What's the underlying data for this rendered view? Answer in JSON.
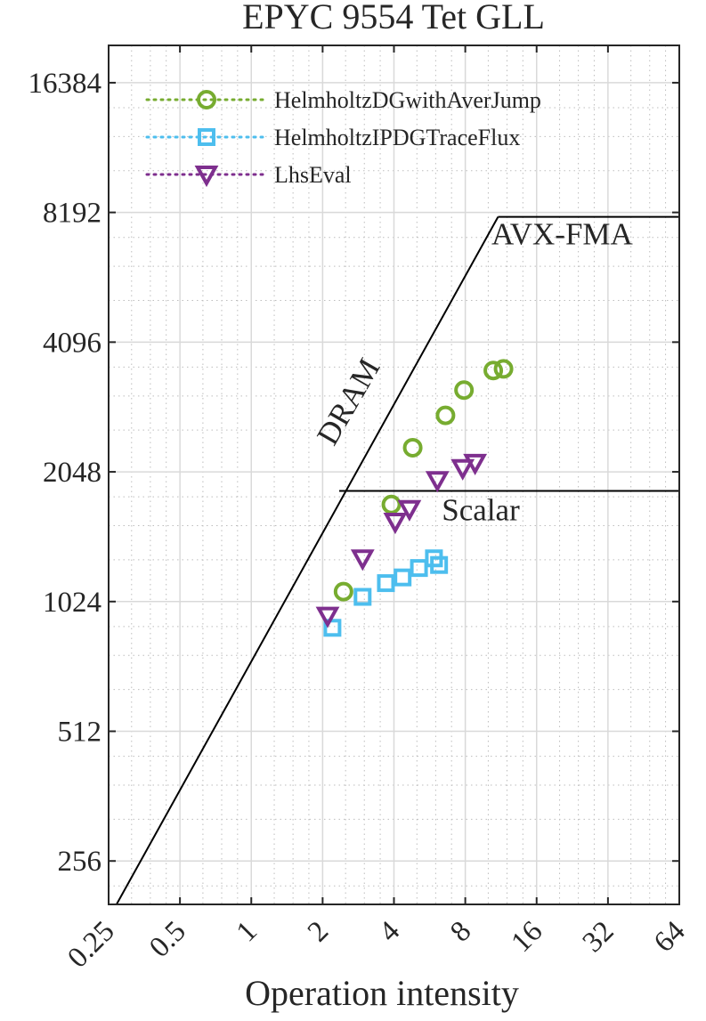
{
  "chart_data": {
    "type": "scatter",
    "title": "EPYC 9554 Tet GLL",
    "xlabel": "Operation intensity",
    "ylabel": "",
    "x_scale": "log2",
    "y_scale": "log2",
    "xlim": [
      0.25,
      64
    ],
    "ylim": [
      203,
      20000
    ],
    "x_ticks": [
      0.25,
      0.5,
      1,
      2,
      4,
      8,
      16,
      32,
      64
    ],
    "x_tick_labels": [
      "0.25",
      "0.5",
      "1",
      "2",
      "4",
      "8",
      "16",
      "32",
      "64"
    ],
    "y_ticks": [
      256,
      512,
      1024,
      2048,
      4096,
      8192,
      16384
    ],
    "y_tick_labels": [
      "256",
      "512",
      "1024",
      "2048",
      "4096",
      "8192",
      "16384"
    ],
    "grid": true,
    "legend_position": "top-left",
    "series": [
      {
        "name": "HelmholtzDGwithAverJump",
        "color": "#77ac30",
        "marker": "circle",
        "points": [
          [
            2.45,
            1080
          ],
          [
            3.9,
            1720
          ],
          [
            4.8,
            2330
          ],
          [
            6.6,
            2770
          ],
          [
            7.9,
            3170
          ],
          [
            10.5,
            3520
          ],
          [
            11.6,
            3550
          ]
        ]
      },
      {
        "name": "HelmholtzIPDGTraceFlux",
        "color": "#4dbeee",
        "marker": "square",
        "points": [
          [
            2.2,
            890
          ],
          [
            2.95,
            1050
          ],
          [
            3.7,
            1130
          ],
          [
            4.35,
            1165
          ],
          [
            5.1,
            1225
          ],
          [
            5.9,
            1290
          ],
          [
            6.2,
            1245
          ]
        ]
      },
      {
        "name": "LhsEval",
        "color": "#7e2f8e",
        "marker": "triangle-down",
        "points": [
          [
            2.1,
            950
          ],
          [
            2.95,
            1290
          ],
          [
            4.05,
            1570
          ],
          [
            4.65,
            1680
          ],
          [
            6.1,
            1960
          ],
          [
            7.8,
            2090
          ],
          [
            8.8,
            2150
          ]
        ]
      }
    ],
    "roofline": {
      "color": "#000000",
      "lines": [
        {
          "name": "DRAM",
          "from": [
            0.27,
            203
          ],
          "to": [
            11.0,
            8000
          ]
        },
        {
          "name": "AVX-FMA",
          "from": [
            11.0,
            8000
          ],
          "to": [
            64,
            8000
          ]
        },
        {
          "name": "Scalar",
          "from": [
            2.35,
            1850
          ],
          "to": [
            64,
            1850
          ]
        }
      ]
    },
    "annotations": [
      {
        "text": "DRAM",
        "x": 2.8,
        "y": 2900,
        "rotation": -60
      },
      {
        "text": "AVX-FMA",
        "x": 20.5,
        "y": 6900
      },
      {
        "text": "Scalar",
        "x": 9.3,
        "y": 1580
      }
    ]
  }
}
